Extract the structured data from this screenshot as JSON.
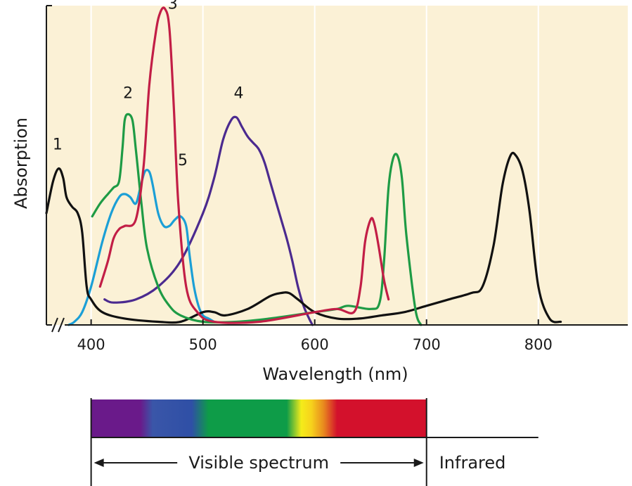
{
  "chart_data": {
    "type": "line",
    "title": "",
    "xlabel": "Wavelength (nm)",
    "ylabel": "Absorption",
    "xlim": [
      360,
      880
    ],
    "ylim": [
      0,
      1
    ],
    "x_ticks": [
      400,
      500,
      600,
      700,
      800
    ],
    "x_tick_labels": [
      "400",
      "500",
      "600",
      "700",
      "800"
    ],
    "grid": "vertical",
    "background_color": "#fbf1d6",
    "series": [
      {
        "name": "1",
        "color": "#111111",
        "x": [
          360,
          366,
          371,
          375,
          378,
          383,
          388,
          392,
          396,
          400,
          410,
          430,
          460,
          480,
          500,
          510,
          520,
          540,
          560,
          570,
          577,
          585,
          600,
          620,
          640,
          660,
          680,
          700,
          720,
          740,
          750,
          760,
          768,
          775,
          780,
          786,
          792,
          800,
          810,
          820
        ],
        "y": [
          0.35,
          0.45,
          0.49,
          0.46,
          0.4,
          0.37,
          0.35,
          0.29,
          0.12,
          0.08,
          0.04,
          0.02,
          0.01,
          0.01,
          0.04,
          0.04,
          0.03,
          0.05,
          0.09,
          0.1,
          0.1,
          0.08,
          0.04,
          0.02,
          0.02,
          0.03,
          0.04,
          0.06,
          0.08,
          0.1,
          0.12,
          0.25,
          0.44,
          0.53,
          0.53,
          0.48,
          0.36,
          0.12,
          0.02,
          0.01
        ],
        "label_position": [
          370,
          0.55
        ]
      },
      {
        "name": "2",
        "color": "#1e9b45",
        "x": [
          401,
          408,
          415,
          420,
          425,
          428,
          430,
          433,
          437,
          440,
          445,
          450,
          460,
          470,
          480,
          500,
          530,
          560,
          600,
          620,
          630,
          650,
          658,
          662,
          666,
          670,
          674,
          678,
          682,
          690,
          695
        ],
        "y": [
          0.34,
          0.38,
          0.41,
          0.43,
          0.45,
          0.55,
          0.64,
          0.66,
          0.64,
          0.55,
          0.38,
          0.24,
          0.12,
          0.06,
          0.03,
          0.01,
          0.01,
          0.02,
          0.04,
          0.05,
          0.06,
          0.05,
          0.07,
          0.2,
          0.43,
          0.52,
          0.53,
          0.46,
          0.28,
          0.05,
          0.0
        ],
        "label_position": [
          433,
          0.71
        ]
      },
      {
        "name": "3",
        "color": "#c21e46",
        "x": [
          408,
          415,
          420,
          425,
          430,
          440,
          447,
          452,
          458,
          462,
          466,
          470,
          474,
          478,
          485,
          495,
          510,
          550,
          600,
          620,
          635,
          641,
          645,
          650,
          653,
          657,
          662,
          666
        ],
        "y": [
          0.12,
          0.2,
          0.27,
          0.3,
          0.31,
          0.33,
          0.5,
          0.75,
          0.92,
          0.98,
          0.99,
          0.93,
          0.68,
          0.38,
          0.12,
          0.04,
          0.01,
          0.01,
          0.04,
          0.05,
          0.04,
          0.12,
          0.26,
          0.33,
          0.32,
          0.25,
          0.14,
          0.08
        ],
        "label_position": [
          473,
          0.99
        ]
      },
      {
        "name": "4",
        "color": "#4b2a8f",
        "x": [
          412,
          420,
          440,
          460,
          480,
          500,
          510,
          518,
          525,
          530,
          535,
          540,
          545,
          550,
          555,
          560,
          565,
          570,
          575,
          580,
          585,
          590,
          595,
          598
        ],
        "y": [
          0.08,
          0.07,
          0.08,
          0.12,
          0.2,
          0.35,
          0.46,
          0.58,
          0.64,
          0.65,
          0.62,
          0.59,
          0.57,
          0.55,
          0.51,
          0.45,
          0.39,
          0.33,
          0.27,
          0.2,
          0.12,
          0.06,
          0.02,
          0.0
        ],
        "label_position": [
          532,
          0.71
        ]
      },
      {
        "name": "5",
        "color": "#1b9fd6",
        "x": [
          380,
          385,
          392,
          400,
          410,
          418,
          425,
          430,
          435,
          440,
          444,
          448,
          452,
          455,
          460,
          465,
          470,
          475,
          480,
          485,
          488,
          492,
          496,
          500,
          505,
          510
        ],
        "y": [
          0.0,
          0.01,
          0.04,
          0.12,
          0.26,
          0.35,
          0.4,
          0.41,
          0.4,
          0.38,
          0.43,
          0.48,
          0.48,
          0.44,
          0.35,
          0.31,
          0.31,
          0.33,
          0.34,
          0.31,
          0.22,
          0.12,
          0.06,
          0.03,
          0.02,
          0.01
        ],
        "label_position": [
          482,
          0.5
        ]
      }
    ]
  },
  "spectrum": {
    "label": "Visible spectrum",
    "infrared_label": "Infrared",
    "range_nm": [
      400,
      700
    ],
    "line_end_nm": 800,
    "stops": [
      {
        "nm": 400,
        "color": "#6a1a8a"
      },
      {
        "nm": 444,
        "color": "#6a1a8a"
      },
      {
        "nm": 455,
        "color": "#3a56a8"
      },
      {
        "nm": 490,
        "color": "#2f4fa6"
      },
      {
        "nm": 505,
        "color": "#0e9c48"
      },
      {
        "nm": 575,
        "color": "#0e9c48"
      },
      {
        "nm": 588,
        "color": "#f5ec1a"
      },
      {
        "nm": 597,
        "color": "#f6d21c"
      },
      {
        "nm": 608,
        "color": "#e8891e"
      },
      {
        "nm": 620,
        "color": "#d3112c"
      },
      {
        "nm": 700,
        "color": "#d3112c"
      }
    ]
  }
}
